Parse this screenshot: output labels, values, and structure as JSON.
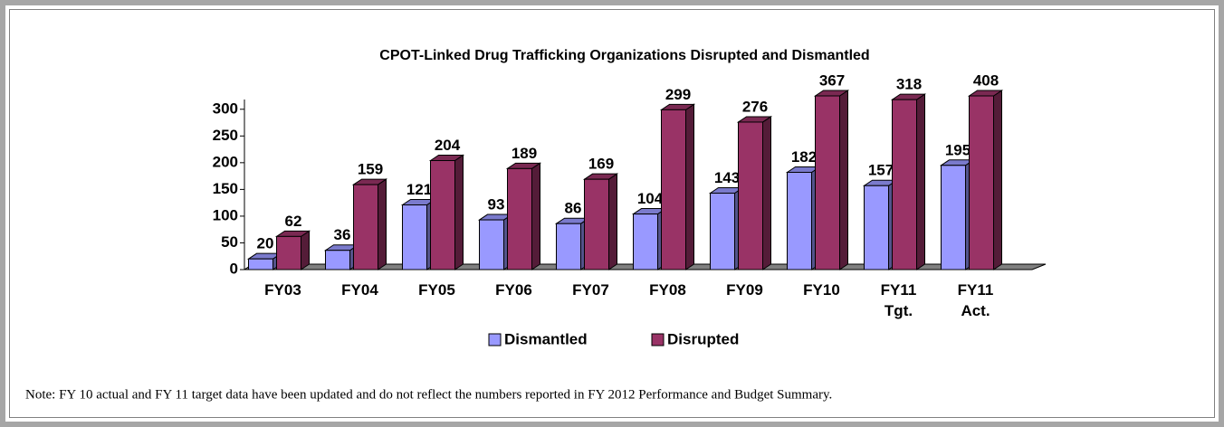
{
  "chart_data": {
    "type": "bar3d",
    "title": "CPOT-Linked Drug Trafficking Organizations Disrupted and Dismantled",
    "categories": [
      "FY03",
      "FY04",
      "FY05",
      "FY06",
      "FY07",
      "FY08",
      "FY09",
      "FY10",
      "FY11 Tgt.",
      "FY11 Act."
    ],
    "series": [
      {
        "name": "Dismantled",
        "color": "#9999ff",
        "values": [
          20,
          36,
          121,
          93,
          86,
          104,
          143,
          182,
          157,
          195
        ]
      },
      {
        "name": "Disrupted",
        "color": "#993366",
        "values": [
          62,
          159,
          204,
          189,
          169,
          299,
          276,
          367,
          318,
          408
        ]
      }
    ],
    "ylim": [
      0,
      325
    ],
    "yticks": [
      0,
      50,
      100,
      150,
      200,
      250,
      300
    ],
    "legend": "bottom",
    "note": "Note: FY 10 actual and FY 11 target data have been updated and do not reflect the numbers reported in FY 2012 Performance and Budget Summary."
  }
}
